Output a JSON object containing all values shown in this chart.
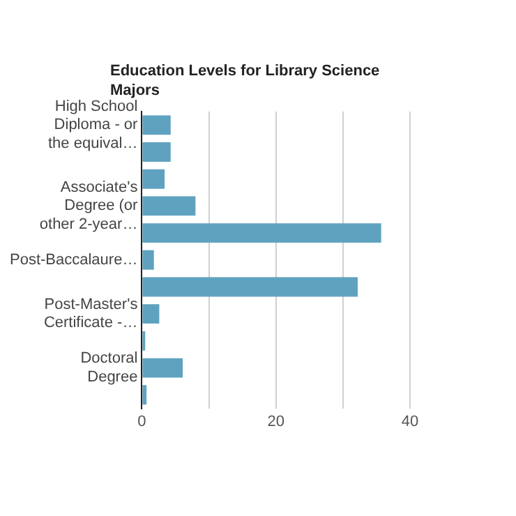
{
  "chart_data": {
    "type": "bar",
    "orientation": "horizontal",
    "title": "Education Levels for Library Science Majors",
    "categories": [
      "High School Diploma - or the equival…",
      null,
      null,
      "Associate's Degree (or other 2-year…",
      null,
      "Post-Baccalaure…",
      null,
      "Post-Master's Certificate -…",
      null,
      "Doctoral Degree",
      null
    ],
    "values": [
      4.3,
      4.3,
      3.4,
      8.0,
      35.7,
      1.8,
      32.2,
      2.6,
      0.5,
      6.1,
      0.7
    ],
    "color": "#5fa2c0",
    "xlim": [
      0,
      40
    ],
    "xticks": [
      0,
      {
        "value": 10,
        "label": null
      },
      20,
      {
        "value": 30,
        "label": null
      },
      40
    ],
    "grid": "x",
    "legend": false
  }
}
